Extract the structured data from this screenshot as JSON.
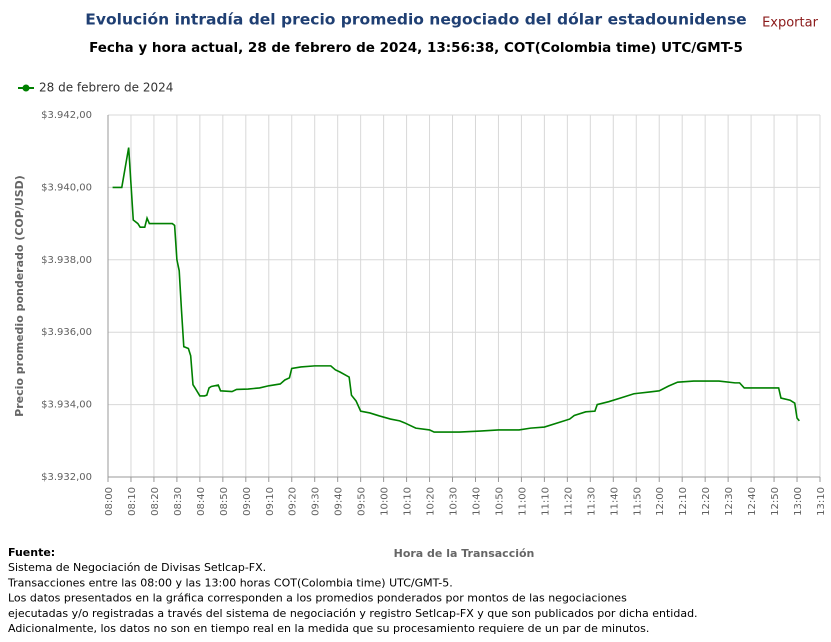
{
  "chart_data": {
    "type": "line",
    "title": "Evolución intradía del precio promedio negociado del dólar estadounidense",
    "subtitle": "Fecha y hora actual, 28 de febrero de 2024, 13:56:38, COT(Colombia time) UTC/GMT-5",
    "export_button": "Exportar",
    "x_label": "Hora de la Transacción",
    "y_label": "Precio promedio ponderado (COP/USD)",
    "grid": true,
    "legend_position": "top-left",
    "x": [
      "08:02",
      "08:06",
      "08:09",
      "08:11",
      "08:13",
      "08:14",
      "08:16",
      "08:17",
      "08:18",
      "08:24",
      "08:28",
      "08:29",
      "08:30",
      "08:31",
      "08:32",
      "08:33",
      "08:35",
      "08:36",
      "08:37",
      "08:38",
      "08:40",
      "08:42",
      "08:43",
      "08:44",
      "08:45",
      "08:48",
      "08:49",
      "08:54",
      "08:56",
      "09:01",
      "09:06",
      "09:10",
      "09:15",
      "09:17",
      "09:19",
      "09:20",
      "09:24",
      "09:30",
      "09:37",
      "09:39",
      "09:41",
      "09:45",
      "09:46",
      "09:48",
      "09:50",
      "09:54",
      "09:58",
      "10:03",
      "10:07",
      "10:09",
      "10:14",
      "10:20",
      "10:22",
      "10:33",
      "10:42",
      "10:50",
      "10:59",
      "11:04",
      "11:10",
      "11:17",
      "11:21",
      "11:23",
      "11:28",
      "11:32",
      "11:33",
      "11:38",
      "11:43",
      "11:49",
      "11:56",
      "12:00",
      "12:04",
      "12:08",
      "12:15",
      "12:26",
      "12:33",
      "12:35",
      "12:37",
      "12:44",
      "12:52",
      "12:53",
      "12:57",
      "12:59",
      "13:00",
      "13:01"
    ],
    "series": [
      {
        "name": "28 de febrero de 2024",
        "color": "#008000",
        "values": [
          3940.0,
          3940.0,
          3941.1,
          3939.1,
          3939.0,
          3938.9,
          3938.9,
          3939.15,
          3939.0,
          3939.0,
          3939.0,
          3938.95,
          3938.0,
          3937.7,
          3936.6,
          3935.6,
          3935.55,
          3935.35,
          3934.55,
          3934.45,
          3934.24,
          3934.24,
          3934.26,
          3934.46,
          3934.5,
          3934.54,
          3934.38,
          3934.36,
          3934.42,
          3934.43,
          3934.46,
          3934.52,
          3934.57,
          3934.68,
          3934.74,
          3935.0,
          3935.04,
          3935.07,
          3935.07,
          3934.96,
          3934.9,
          3934.76,
          3934.26,
          3934.1,
          3933.82,
          3933.77,
          3933.69,
          3933.6,
          3933.55,
          3933.5,
          3933.35,
          3933.3,
          3933.24,
          3933.24,
          3933.27,
          3933.3,
          3933.3,
          3933.35,
          3933.38,
          3933.52,
          3933.6,
          3933.7,
          3933.8,
          3933.82,
          3934.0,
          3934.08,
          3934.18,
          3934.3,
          3934.35,
          3934.38,
          3934.51,
          3934.62,
          3934.65,
          3934.65,
          3934.6,
          3934.6,
          3934.46,
          3934.46,
          3934.46,
          3934.18,
          3934.12,
          3934.04,
          3933.63,
          3933.55
        ]
      }
    ],
    "xlim": [
      "08:00",
      "13:10"
    ],
    "xticks": [
      "08:00",
      "08:10",
      "08:20",
      "08:30",
      "08:40",
      "08:50",
      "09:00",
      "09:10",
      "09:20",
      "09:30",
      "09:40",
      "09:50",
      "10:00",
      "10:10",
      "10:20",
      "10:30",
      "10:40",
      "10:50",
      "11:00",
      "11:10",
      "11:20",
      "11:30",
      "11:40",
      "11:50",
      "12:00",
      "12:10",
      "12:20",
      "12:30",
      "12:40",
      "12:50",
      "13:00",
      "13:10"
    ],
    "ylim": [
      3932,
      3942
    ],
    "yticks": [
      {
        "value": 3932,
        "label": "$3.932,00"
      },
      {
        "value": 3934,
        "label": "$3.934,00"
      },
      {
        "value": 3936,
        "label": "$3.936,00"
      },
      {
        "value": 3938,
        "label": "$3.938,00"
      },
      {
        "value": 3940,
        "label": "$3.940,00"
      },
      {
        "value": 3942,
        "label": "$3.942,00"
      }
    ],
    "footer": {
      "heading": "Fuente:",
      "lines": [
        "Sistema de Negociación de Divisas Setlcap-FX.",
        "Transacciones entre las 08:00 y las 13:00 horas COT(Colombia time) UTC/GMT-5.",
        "Los datos presentados en la gráfica corresponden a los promedios ponderados por montos de las negociaciones",
        "ejecutadas y/o registradas a través del sistema de negociación y registro Setlcap-FX y que son publicados por dicha entidad.",
        "Adicionalmente, los datos no son en tiempo real en la medida que su procesamiento requiere de un par de minutos."
      ]
    }
  }
}
